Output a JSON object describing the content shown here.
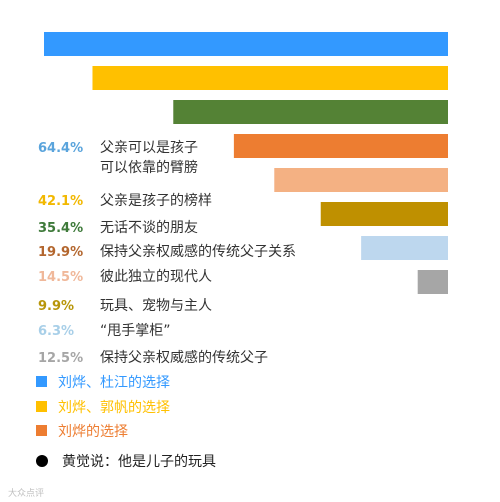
{
  "chart_data": {
    "type": "bar",
    "orientation": "horizontal",
    "xlim": [
      0,
      100
    ],
    "categories": [
      "",
      "",
      "",
      "父亲可以是孩子可以依靠的臂膀",
      "父亲是孩子的榜样",
      "无话不谈的朋友",
      "保持父亲权威感的传统父子关系",
      "彼此独立的现代人",
      "玩具、宠物与主人",
      "“甩手掌柜”",
      "保持父亲权威感的传统父子"
    ],
    "category_lines": {
      "3": [
        "父亲可以是孩子",
        "可以依靠的臂膀"
      ]
    },
    "value_labels": [
      "64.4%",
      "42.1%",
      "35.4%",
      "19.9%",
      "14.5%",
      "9.9%",
      "6.3%",
      "12.5%"
    ],
    "value_label_colors": [
      "#5aa4dc",
      "#f2b800",
      "#3e7a3a",
      "#b3662e",
      "#f0b89a",
      "#b8960a",
      "#a8cfe8",
      "#a6a6a6"
    ],
    "bars": [
      {
        "value": 100.0,
        "color": "#3399ff"
      },
      {
        "value": 88.0,
        "color": "#ffc000"
      },
      {
        "value": 68.0,
        "color": "#548235"
      },
      {
        "value": 53.0,
        "color": "#ed7d31"
      },
      {
        "value": 43.0,
        "color": "#f4b183"
      },
      {
        "value": 31.5,
        "color": "#bf9000"
      },
      {
        "value": 21.5,
        "color": "#bdd7ee"
      },
      {
        "value": 7.5,
        "color": "#a6a6a6"
      }
    ],
    "legend": [
      {
        "label": "刘烨、杜江的选择",
        "color": "#3399ff",
        "marker": "square"
      },
      {
        "label": "刘烨、郭帆的选择",
        "color": "#ffc000",
        "marker": "square"
      },
      {
        "label": "刘烨的选择",
        "color": "#ed7d31",
        "marker": "square"
      },
      {
        "label": "黄觉说：他是儿子的玩具",
        "color": "#000000",
        "marker": "circle"
      }
    ],
    "grid": false
  },
  "watermark": "大众点评"
}
